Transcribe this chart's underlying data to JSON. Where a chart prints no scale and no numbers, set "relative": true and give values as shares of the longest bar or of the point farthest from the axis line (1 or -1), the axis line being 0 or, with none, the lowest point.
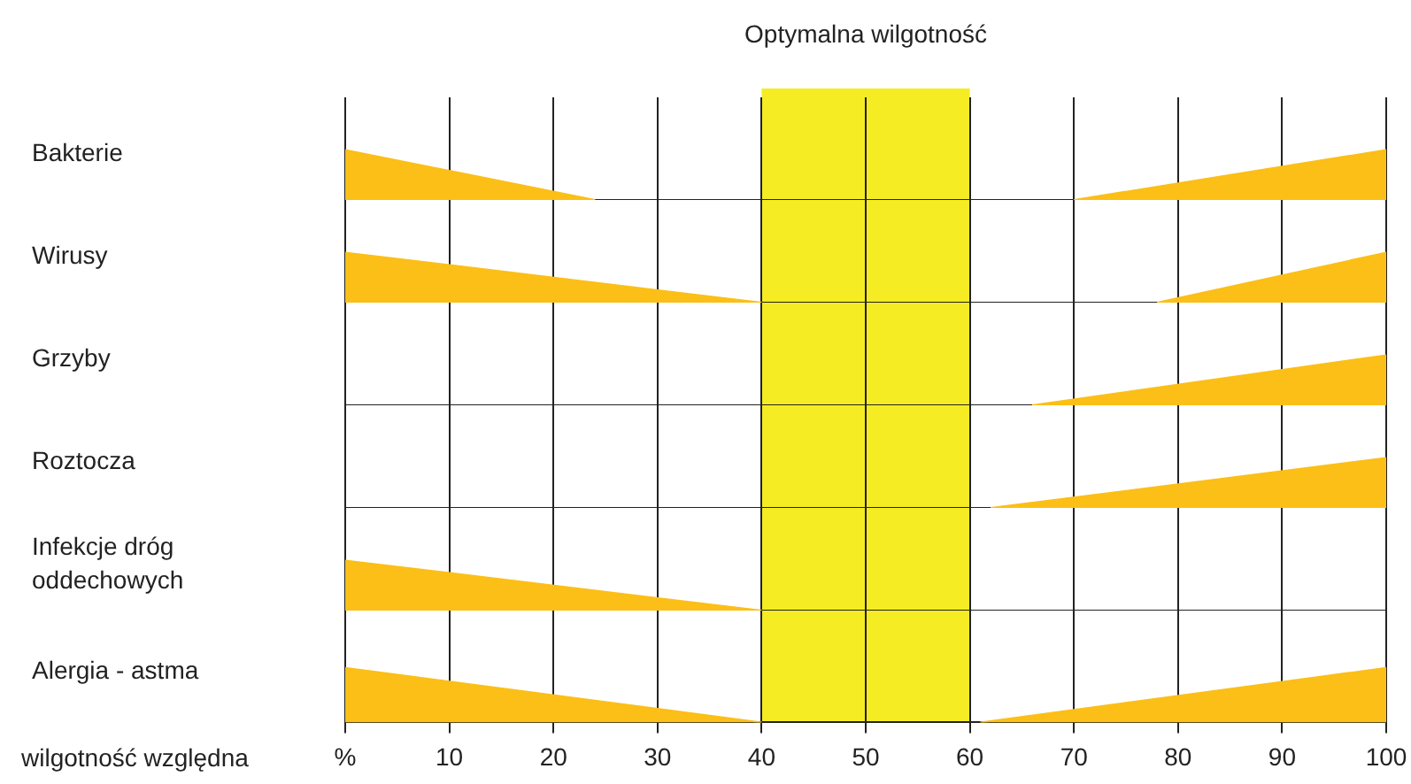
{
  "chart_data": [
    {
      "type": "area",
      "relative": true,
      "ylabel": "Bakterie",
      "xlim": [
        0,
        100
      ],
      "xticks": [
        0,
        10,
        20,
        30,
        40,
        50,
        60,
        70,
        80,
        90,
        100
      ],
      "tick_labels": false,
      "grid": "x",
      "marker": "none",
      "bands": [
        {
          "axis": "x",
          "from": 40,
          "to": 60,
          "label": "Optymalna wilgotność",
          "color": "#f5ec23"
        }
      ],
      "series": [
        {
          "color": "#fbbf17",
          "x": [
            0,
            24
          ],
          "values": [
            1,
            0
          ]
        },
        {
          "color": "#fbbf17",
          "x": [
            70,
            100
          ],
          "values": [
            0,
            1
          ]
        }
      ]
    },
    {
      "type": "area",
      "relative": true,
      "ylabel": "Wirusy",
      "xlim": [
        0,
        100
      ],
      "xticks": [
        0,
        10,
        20,
        30,
        40,
        50,
        60,
        70,
        80,
        90,
        100
      ],
      "tick_labels": false,
      "grid": "x",
      "marker": "none",
      "bands": [
        {
          "axis": "x",
          "from": 40,
          "to": 60,
          "color": "#f5ec23"
        }
      ],
      "series": [
        {
          "color": "#fbbf17",
          "x": [
            0,
            40
          ],
          "values": [
            1,
            0
          ]
        },
        {
          "color": "#fbbf17",
          "x": [
            78,
            100
          ],
          "values": [
            0,
            1
          ]
        }
      ]
    },
    {
      "type": "area",
      "relative": true,
      "ylabel": "Grzyby",
      "xlim": [
        0,
        100
      ],
      "xticks": [
        0,
        10,
        20,
        30,
        40,
        50,
        60,
        70,
        80,
        90,
        100
      ],
      "tick_labels": false,
      "grid": "x",
      "marker": "none",
      "bands": [
        {
          "axis": "x",
          "from": 40,
          "to": 60,
          "color": "#f5ec23"
        }
      ],
      "series": [
        {
          "color": "#fbbf17",
          "x": [
            66,
            100
          ],
          "values": [
            0,
            1
          ]
        }
      ]
    },
    {
      "type": "area",
      "relative": true,
      "ylabel": "Roztocza",
      "xlim": [
        0,
        100
      ],
      "xticks": [
        0,
        10,
        20,
        30,
        40,
        50,
        60,
        70,
        80,
        90,
        100
      ],
      "tick_labels": false,
      "grid": "x",
      "marker": "none",
      "bands": [
        {
          "axis": "x",
          "from": 40,
          "to": 60,
          "color": "#f5ec23"
        }
      ],
      "series": [
        {
          "color": "#fbbf17",
          "x": [
            62,
            100
          ],
          "values": [
            0,
            1
          ]
        }
      ]
    },
    {
      "type": "area",
      "relative": true,
      "ylabel": "Infekcje dróg oddechowych",
      "xlim": [
        0,
        100
      ],
      "xticks": [
        0,
        10,
        20,
        30,
        40,
        50,
        60,
        70,
        80,
        90,
        100
      ],
      "tick_labels": false,
      "grid": "x",
      "marker": "none",
      "bands": [
        {
          "axis": "x",
          "from": 40,
          "to": 60,
          "color": "#f5ec23"
        }
      ],
      "series": [
        {
          "color": "#fbbf17",
          "x": [
            0,
            40
          ],
          "values": [
            1,
            0
          ]
        }
      ]
    },
    {
      "type": "area",
      "relative": true,
      "ylabel": "Alergia - astma",
      "xlabel": "wilgotność względna",
      "xlim": [
        0,
        100
      ],
      "xticks": [
        {
          "value": 0,
          "label": "%"
        },
        10,
        20,
        30,
        40,
        50,
        60,
        70,
        80,
        90,
        100
      ],
      "tick_labels": "x",
      "grid": "x",
      "marker": "none",
      "bands": [
        {
          "axis": "x",
          "from": 40,
          "to": 60,
          "color": "#f5ec23"
        }
      ],
      "series": [
        {
          "color": "#fbbf17",
          "x": [
            0,
            40
          ],
          "values": [
            1,
            0
          ]
        },
        {
          "color": "#fbbf17",
          "x": [
            61,
            100
          ],
          "values": [
            0,
            1
          ]
        }
      ]
    }
  ]
}
